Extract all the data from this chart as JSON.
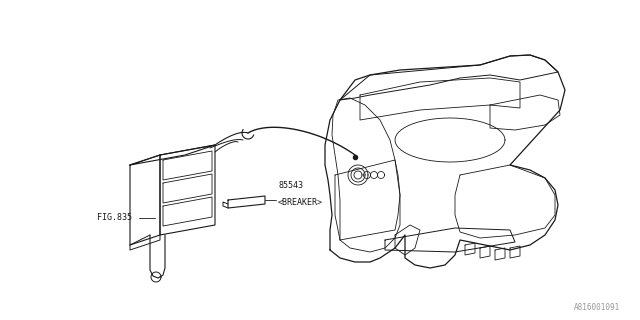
{
  "background_color": "#ffffff",
  "line_color": "#1a1a1a",
  "label_color": "#1a1a1a",
  "fig_width": 6.4,
  "fig_height": 3.2,
  "dpi": 100,
  "part_number": "85543",
  "part_name": "<BREAKER>",
  "fig_ref": "FIG.835",
  "diagram_id": "A816001091",
  "font_size_label": 6.0,
  "font_size_id": 5.5
}
